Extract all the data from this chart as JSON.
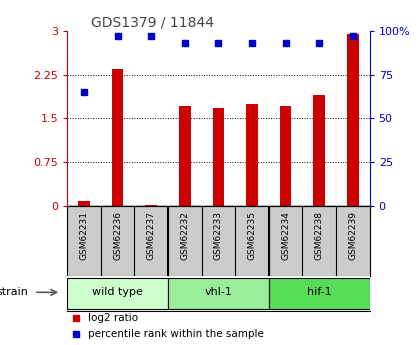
{
  "title": "GDS1379 / 11844",
  "samples": [
    "GSM62231",
    "GSM62236",
    "GSM62237",
    "GSM62232",
    "GSM62233",
    "GSM62235",
    "GSM62234",
    "GSM62238",
    "GSM62239"
  ],
  "log2_ratio": [
    0.08,
    2.35,
    0.02,
    1.72,
    1.68,
    1.75,
    1.72,
    1.9,
    2.95
  ],
  "percentile_rank": [
    65,
    97,
    97,
    93,
    93,
    93,
    93,
    93,
    97
  ],
  "groups": [
    {
      "label": "wild type",
      "start": 0,
      "end": 3,
      "color": "#ccffcc"
    },
    {
      "label": "vhl-1",
      "start": 3,
      "end": 6,
      "color": "#99ee99"
    },
    {
      "label": "hif-1",
      "start": 6,
      "end": 9,
      "color": "#55dd55"
    }
  ],
  "ylim_left": [
    0,
    3
  ],
  "ylim_right": [
    0,
    100
  ],
  "yticks_left": [
    0,
    0.75,
    1.5,
    2.25,
    3
  ],
  "yticks_right": [
    0,
    25,
    50,
    75,
    100
  ],
  "bar_color": "#cc0000",
  "dot_color": "#0000cc",
  "bg_color": "#ffffff",
  "plot_bg": "#ffffff",
  "label_bg": "#cccccc",
  "legend_bar": "log2 ratio",
  "legend_dot": "percentile rank within the sample",
  "left_axis_color": "#cc0000",
  "right_axis_color": "#0000cc",
  "title_color": "#444444",
  "bar_width": 0.35
}
